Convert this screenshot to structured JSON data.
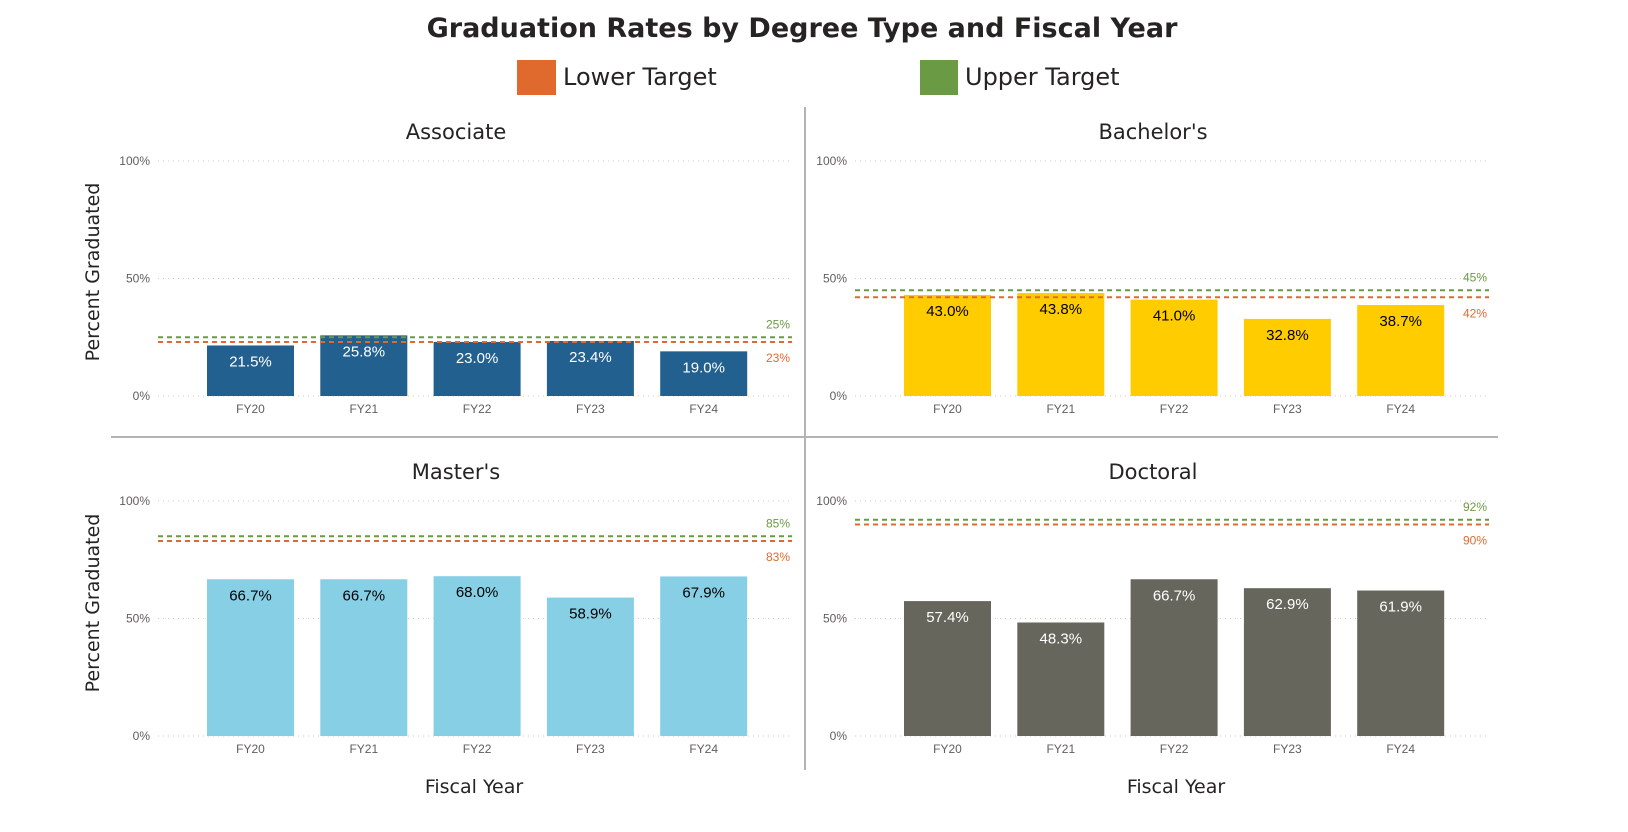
{
  "chart_data": {
    "type": "bar",
    "title": "Graduation Rates by Degree Type and Fiscal Year",
    "legend": [
      {
        "name": "Lower Target",
        "color": "#E06A2E"
      },
      {
        "name": "Upper Target",
        "color": "#6B9A45"
      }
    ],
    "legend_position": "top",
    "ylabel": "Percent Graduated",
    "xlabel": "Fiscal Year",
    "ylim": [
      0,
      100
    ],
    "yticks": [
      "0%",
      "50%",
      "100%"
    ],
    "grid": true,
    "categories": [
      "FY20",
      "FY21",
      "FY22",
      "FY23",
      "FY24"
    ],
    "panels": [
      {
        "name": "Associate",
        "color": "#22608F",
        "label_color": "#FFFFFF",
        "values": [
          21.5,
          25.8,
          23.0,
          23.4,
          19.0
        ],
        "labels": [
          "21.5%",
          "25.8%",
          "23.0%",
          "23.4%",
          "19.0%"
        ],
        "lower_target": 23,
        "upper_target": 25,
        "lower_label": "23%",
        "upper_label": "25%"
      },
      {
        "name": "Bachelor's",
        "color": "#FFCC00",
        "label_color": "#000000",
        "values": [
          43.0,
          43.8,
          41.0,
          32.8,
          38.7
        ],
        "labels": [
          "43.0%",
          "43.8%",
          "41.0%",
          "32.8%",
          "38.7%"
        ],
        "lower_target": 42,
        "upper_target": 45,
        "lower_label": "42%",
        "upper_label": "45%"
      },
      {
        "name": "Master's",
        "color": "#87CFE5",
        "label_color": "#000000",
        "values": [
          66.7,
          66.7,
          68.0,
          58.9,
          67.9
        ],
        "labels": [
          "66.7%",
          "66.7%",
          "68.0%",
          "58.9%",
          "67.9%"
        ],
        "lower_target": 83,
        "upper_target": 85,
        "lower_label": "83%",
        "upper_label": "85%"
      },
      {
        "name": "Doctoral",
        "color": "#66665C",
        "label_color": "#FFFFFF",
        "values": [
          57.4,
          48.3,
          66.7,
          62.9,
          61.9
        ],
        "labels": [
          "57.4%",
          "48.3%",
          "66.7%",
          "62.9%",
          "61.9%"
        ],
        "lower_target": 90,
        "upper_target": 92,
        "lower_label": "90%",
        "upper_label": "92%"
      }
    ]
  }
}
